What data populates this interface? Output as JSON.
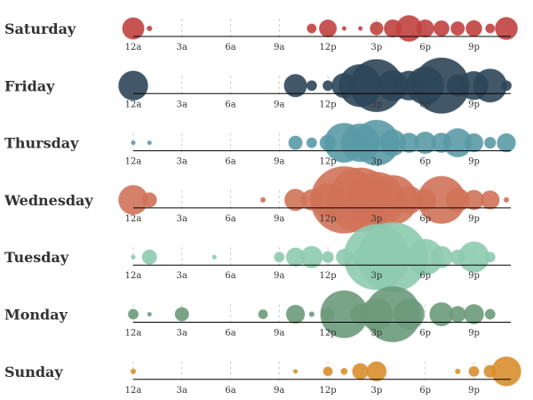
{
  "chart_data": {
    "type": "scatter",
    "subtype": "bubble-timeline",
    "title": "",
    "x_unit": "hour of day",
    "x_range": [
      0,
      23
    ],
    "x_ticks": [
      {
        "hour": 0,
        "label": "12a"
      },
      {
        "hour": 3,
        "label": "3a"
      },
      {
        "hour": 6,
        "label": "6a"
      },
      {
        "hour": 9,
        "label": "9a"
      },
      {
        "hour": 12,
        "label": "12p"
      },
      {
        "hour": 15,
        "label": "3p"
      },
      {
        "hour": 18,
        "label": "6p"
      },
      {
        "hour": 21,
        "label": "9p"
      }
    ],
    "size_note": "bubble area proportional to activity level (relative units)",
    "series": [
      {
        "name": "Saturday",
        "color": "#c0413f",
        "points": [
          {
            "hour": 0,
            "value": 55
          },
          {
            "hour": 1,
            "value": 3
          },
          {
            "hour": 11,
            "value": 10
          },
          {
            "hour": 12,
            "value": 35
          },
          {
            "hour": 13,
            "value": 2
          },
          {
            "hour": 14,
            "value": 2
          },
          {
            "hour": 15,
            "value": 20
          },
          {
            "hour": 16,
            "value": 36
          },
          {
            "hour": 17,
            "value": 78
          },
          {
            "hour": 18,
            "value": 36
          },
          {
            "hour": 19,
            "value": 28
          },
          {
            "hour": 20,
            "value": 22
          },
          {
            "hour": 21,
            "value": 30
          },
          {
            "hour": 22,
            "value": 10
          },
          {
            "hour": 23,
            "value": 58
          }
        ]
      },
      {
        "name": "Friday",
        "color": "#2d4659",
        "points": [
          {
            "hour": 0,
            "value": 100
          },
          {
            "hour": 10,
            "value": 60
          },
          {
            "hour": 11,
            "value": 12
          },
          {
            "hour": 12,
            "value": 12
          },
          {
            "hour": 13,
            "value": 70
          },
          {
            "hour": 14,
            "value": 210
          },
          {
            "hour": 15,
            "value": 320
          },
          {
            "hour": 16,
            "value": 110
          },
          {
            "hour": 17,
            "value": 100
          },
          {
            "hour": 18,
            "value": 165
          },
          {
            "hour": 19,
            "value": 360
          },
          {
            "hour": 20,
            "value": 55
          },
          {
            "hour": 21,
            "value": 95
          },
          {
            "hour": 22,
            "value": 130
          },
          {
            "hour": 23,
            "value": 12
          }
        ]
      },
      {
        "name": "Thursday",
        "color": "#5a9aa6",
        "points": [
          {
            "hour": 0,
            "value": 2
          },
          {
            "hour": 1,
            "value": 2
          },
          {
            "hour": 10,
            "value": 22
          },
          {
            "hour": 11,
            "value": 12
          },
          {
            "hour": 12,
            "value": 30
          },
          {
            "hour": 13,
            "value": 180
          },
          {
            "hour": 14,
            "value": 170
          },
          {
            "hour": 15,
            "value": 240
          },
          {
            "hour": 16,
            "value": 80
          },
          {
            "hour": 17,
            "value": 45
          },
          {
            "hour": 18,
            "value": 55
          },
          {
            "hour": 19,
            "value": 45
          },
          {
            "hour": 20,
            "value": 95
          },
          {
            "hour": 21,
            "value": 40
          },
          {
            "hour": 22,
            "value": 15
          },
          {
            "hour": 23,
            "value": 40
          }
        ]
      },
      {
        "name": "Wednesday",
        "color": "#d07258",
        "points": [
          {
            "hour": 0,
            "value": 100
          },
          {
            "hour": 1,
            "value": 25
          },
          {
            "hour": 8,
            "value": 3
          },
          {
            "hour": 10,
            "value": 55
          },
          {
            "hour": 11,
            "value": 50
          },
          {
            "hour": 12,
            "value": 130
          },
          {
            "hour": 13,
            "value": 520
          },
          {
            "hour": 14,
            "value": 480
          },
          {
            "hour": 15,
            "value": 360
          },
          {
            "hour": 16,
            "value": 280
          },
          {
            "hour": 17,
            "value": 90
          },
          {
            "hour": 18,
            "value": 55
          },
          {
            "hour": 19,
            "value": 260
          },
          {
            "hour": 20,
            "value": 65
          },
          {
            "hour": 21,
            "value": 45
          },
          {
            "hour": 22,
            "value": 40
          },
          {
            "hour": 23,
            "value": 3
          }
        ]
      },
      {
        "name": "Tuesday",
        "color": "#8dcaaf",
        "points": [
          {
            "hour": 0,
            "value": 2
          },
          {
            "hour": 1,
            "value": 25
          },
          {
            "hour": 5,
            "value": 2
          },
          {
            "hour": 9,
            "value": 12
          },
          {
            "hour": 10,
            "value": 40
          },
          {
            "hour": 11,
            "value": 55
          },
          {
            "hour": 12,
            "value": 15
          },
          {
            "hour": 13,
            "value": 30
          },
          {
            "hour": 14,
            "value": 30
          },
          {
            "hour": 15,
            "value": 500
          },
          {
            "hour": 16,
            "value": 560
          },
          {
            "hour": 17,
            "value": 5
          },
          {
            "hour": 18,
            "value": 150
          },
          {
            "hour": 19,
            "value": 55
          },
          {
            "hour": 20,
            "value": 25
          },
          {
            "hour": 21,
            "value": 110
          },
          {
            "hour": 22,
            "value": 12
          }
        ]
      },
      {
        "name": "Monday",
        "color": "#6c9a7b",
        "points": [
          {
            "hour": 0,
            "value": 12
          },
          {
            "hour": 1,
            "value": 2
          },
          {
            "hour": 3,
            "value": 22
          },
          {
            "hour": 8,
            "value": 10
          },
          {
            "hour": 10,
            "value": 40
          },
          {
            "hour": 11,
            "value": 3
          },
          {
            "hour": 12,
            "value": 20
          },
          {
            "hour": 13,
            "value": 260
          },
          {
            "hour": 14,
            "value": 45
          },
          {
            "hour": 15,
            "value": 120
          },
          {
            "hour": 16,
            "value": 360
          },
          {
            "hour": 17,
            "value": 110
          },
          {
            "hour": 19,
            "value": 65
          },
          {
            "hour": 20,
            "value": 30
          },
          {
            "hour": 21,
            "value": 45
          },
          {
            "hour": 22,
            "value": 12
          }
        ]
      },
      {
        "name": "Sunday",
        "color": "#d98e2d",
        "points": [
          {
            "hour": 0,
            "value": 3
          },
          {
            "hour": 10,
            "value": 2
          },
          {
            "hour": 12,
            "value": 10
          },
          {
            "hour": 13,
            "value": 5
          },
          {
            "hour": 14,
            "value": 30
          },
          {
            "hour": 15,
            "value": 45
          },
          {
            "hour": 20,
            "value": 3
          },
          {
            "hour": 21,
            "value": 12
          },
          {
            "hour": 22,
            "value": 18
          },
          {
            "hour": 23,
            "value": 100
          }
        ]
      }
    ]
  }
}
